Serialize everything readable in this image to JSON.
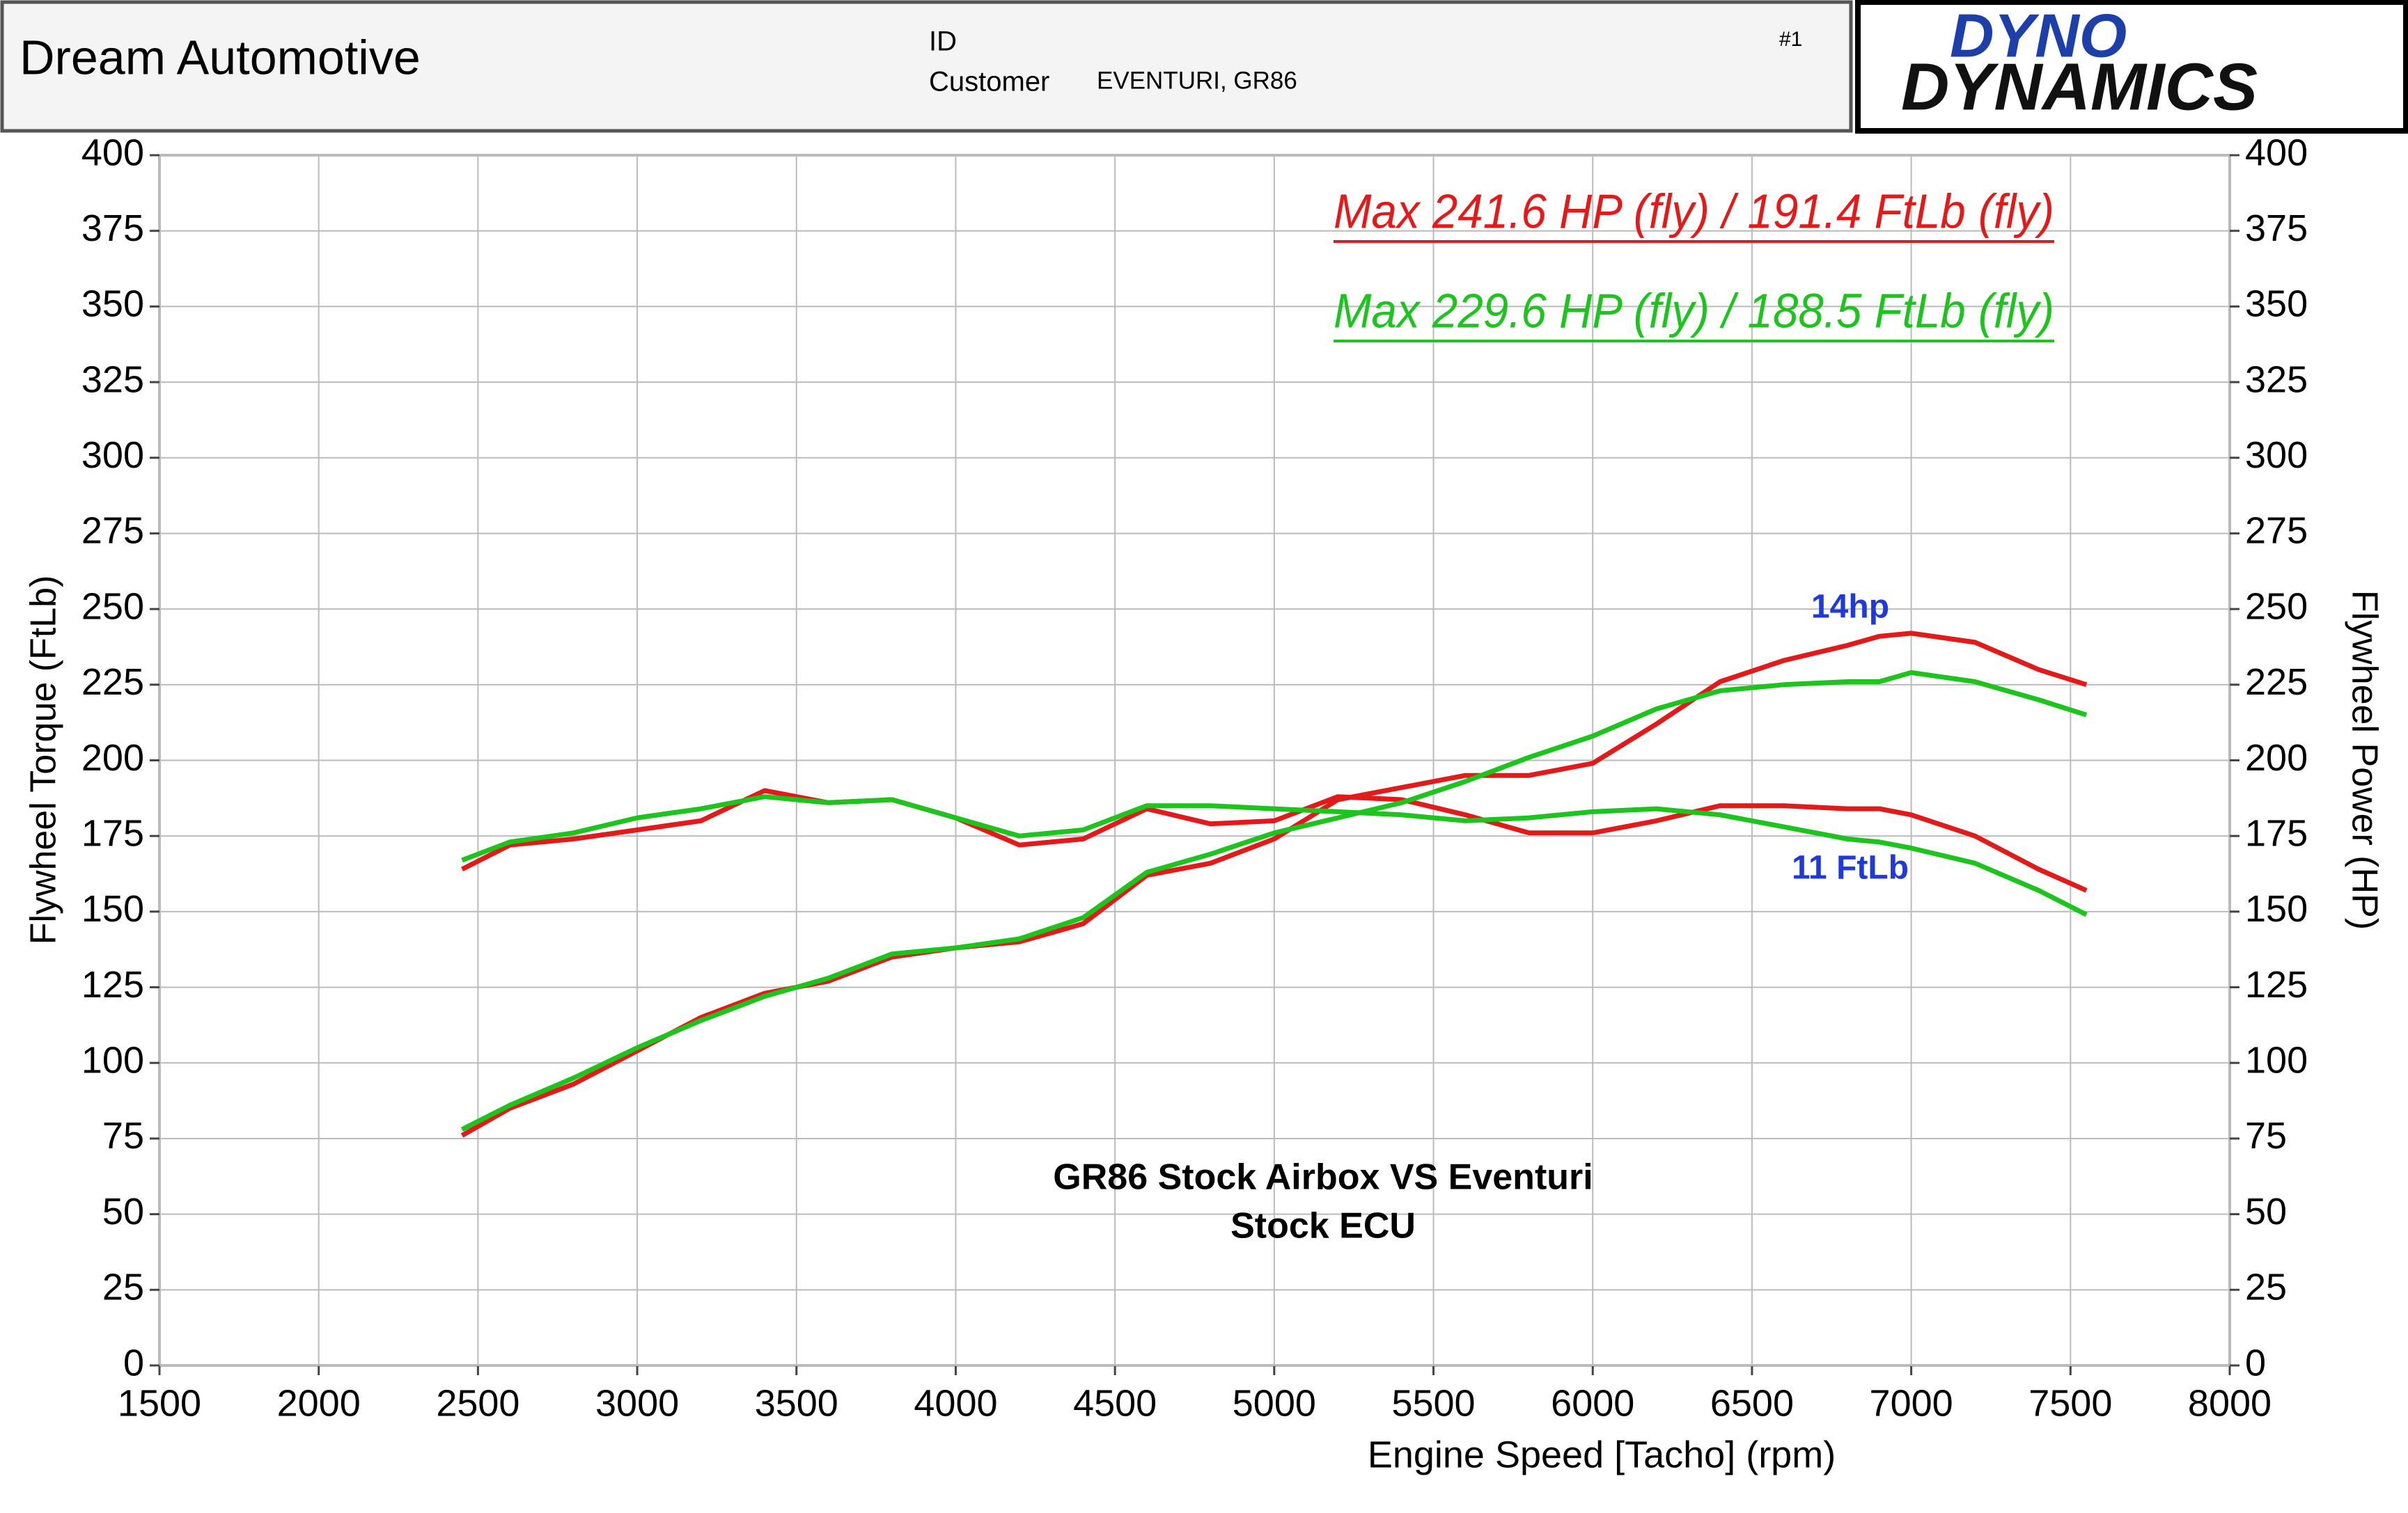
{
  "header": {
    "company": "Dream Automotive",
    "id_label": "ID",
    "run": "#1",
    "customer_label": "Customer",
    "customer": "EVENTURI, GR86",
    "logo_top": "DYNO",
    "logo_bottom": "DYNAMICS"
  },
  "chart_data": {
    "type": "line",
    "x_label": "Engine Speed [Tacho] (rpm)",
    "y_label": "Flywheel Torque (FtLb)",
    "y2_label": "Flywheel Power (HP)",
    "annotations": [
      "14hp",
      "11 FtLb",
      "GR86 Stock Airbox VS Eventuri",
      "Stock ECU"
    ],
    "x": [
      2450,
      2600,
      2800,
      3000,
      3200,
      3400,
      3600,
      3800,
      4000,
      4200,
      4400,
      4600,
      4800,
      5000,
      5200,
      5400,
      5600,
      5800,
      6000,
      6200,
      6400,
      6600,
      6800,
      6900,
      7000,
      7200,
      7400,
      7550
    ],
    "series": [
      {
        "name": "Max 241.6 HP (fly) / 191.4 FtLb (fly)",
        "color": "#e31a1a",
        "values": [
          164,
          172,
          174,
          177,
          180,
          190,
          186,
          187,
          181,
          172,
          174,
          184,
          179,
          180,
          188,
          187,
          182,
          176,
          176,
          180,
          185,
          185,
          184,
          184,
          182,
          175,
          164,
          157
        ]
      },
      {
        "color": "#e31a1a",
        "axis": "y2",
        "values": [
          76,
          85,
          93,
          104,
          115,
          123,
          127,
          135,
          138,
          140,
          146,
          162,
          166,
          174,
          187,
          191,
          195,
          195,
          199,
          212,
          226,
          233,
          238,
          241,
          242,
          239,
          230,
          225
        ]
      },
      {
        "name": "Max 229.6 HP (fly) / 188.5 FtLb (fly)",
        "color": "#1ec41e",
        "values": [
          167,
          173,
          176,
          181,
          184,
          188,
          186,
          187,
          181,
          175,
          177,
          185,
          185,
          184,
          183,
          182,
          180,
          181,
          183,
          184,
          182,
          178,
          174,
          173,
          171,
          166,
          157,
          149
        ]
      },
      {
        "color": "#1ec41e",
        "axis": "y2",
        "values": [
          78,
          86,
          95,
          105,
          114,
          122,
          128,
          136,
          138,
          141,
          148,
          163,
          169,
          176,
          181,
          186,
          193,
          201,
          208,
          217,
          223,
          225,
          226,
          226,
          229,
          226,
          220,
          215
        ]
      }
    ],
    "xlim": [
      1500,
      8000
    ],
    "xticks": [
      1500,
      2000,
      2500,
      3000,
      3500,
      4000,
      4500,
      5000,
      5500,
      6000,
      6500,
      7000,
      7500,
      8000
    ],
    "ylim": [
      0,
      400
    ],
    "yticks": [
      0,
      25,
      50,
      75,
      100,
      125,
      150,
      175,
      200,
      225,
      250,
      275,
      300,
      325,
      350,
      375,
      400
    ],
    "y2lim": [
      0,
      400
    ],
    "y2ticks": [
      0,
      25,
      50,
      75,
      100,
      125,
      150,
      175,
      200,
      225,
      250,
      275,
      300,
      325,
      350,
      375,
      400
    ],
    "grid": true
  }
}
